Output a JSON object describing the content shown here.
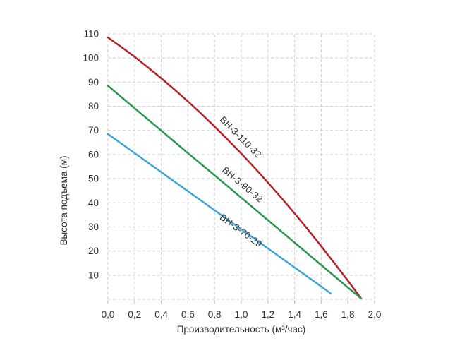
{
  "page": {
    "background": "#ffffff",
    "text_color": "#2d2d2d"
  },
  "chart_data": {
    "type": "line",
    "title": "",
    "xlabel": "Производительность (м³/час)",
    "ylabel": "Высота подъема (м)",
    "xlim": [
      0,
      2.0
    ],
    "ylim": [
      0,
      110
    ],
    "x_ticks": [
      0.0,
      0.2,
      0.4,
      0.6,
      0.8,
      1.0,
      1.2,
      1.4,
      1.6,
      1.8,
      2.0
    ],
    "x_tick_labels": [
      "0,0",
      "0,2",
      "0,4",
      "0,6",
      "0,8",
      "1,0",
      "1,2",
      "1,4",
      "1,6",
      "1,8",
      "2,0"
    ],
    "y_ticks": [
      10,
      20,
      30,
      40,
      50,
      60,
      70,
      80,
      90,
      100,
      110
    ],
    "y_tick_labels": [
      "10",
      "20",
      "30",
      "40",
      "50",
      "60",
      "70",
      "80",
      "90",
      "100",
      "110"
    ],
    "grid": {
      "show": true,
      "style": "dashed",
      "color": "#ccd2cc",
      "tick_color": "#b8bdb8"
    },
    "legend_position": "inline-labels",
    "series": [
      {
        "name": "ВН-3-110-32",
        "color": "#b22329",
        "x": [
          0,
          0.1,
          0.2,
          0.3,
          0.4,
          0.5,
          0.6,
          0.7,
          0.8,
          0.9,
          1.0,
          1.1,
          1.2,
          1.3,
          1.4,
          1.5,
          1.6,
          1.7,
          1.8,
          1.9
        ],
        "y": [
          108.5,
          104.6,
          100.5,
          96.1,
          91.6,
          86.9,
          82.0,
          76.9,
          71.6,
          66.1,
          60.4,
          54.5,
          48.4,
          42.1,
          35.6,
          28.9,
          22.0,
          14.9,
          7.7,
          0.3
        ],
        "label": {
          "text": "ВН-3-110-32",
          "q": 0.979,
          "h": 66.3,
          "angle": 45
        }
      },
      {
        "name": "ВН-3-90-32",
        "color": "#28964c",
        "x": [
          0,
          0.2,
          0.4,
          0.6,
          0.8,
          1.0,
          1.2,
          1.4,
          1.6,
          1.8,
          1.9
        ],
        "y": [
          88.5,
          79.2,
          69.9,
          60.6,
          51.4,
          42.1,
          32.8,
          23.5,
          14.2,
          4.9,
          0.3
        ],
        "label": {
          "text": "ВН-3-90-32",
          "q": 0.995,
          "h": 46.6,
          "angle": 40
        }
      },
      {
        "name": "ВН-3-70-29",
        "color": "#3fa3d6",
        "x": [
          0,
          0.2,
          0.4,
          0.6,
          0.8,
          1.0,
          1.2,
          1.4,
          1.6,
          1.67
        ],
        "y": [
          68.5,
          60.6,
          52.7,
          44.8,
          36.9,
          29.0,
          21.1,
          13.2,
          5.3,
          2.5
        ],
        "label": {
          "text": "ВН-3-70-29",
          "q": 0.984,
          "h": 27.4,
          "angle": 36
        }
      }
    ]
  }
}
